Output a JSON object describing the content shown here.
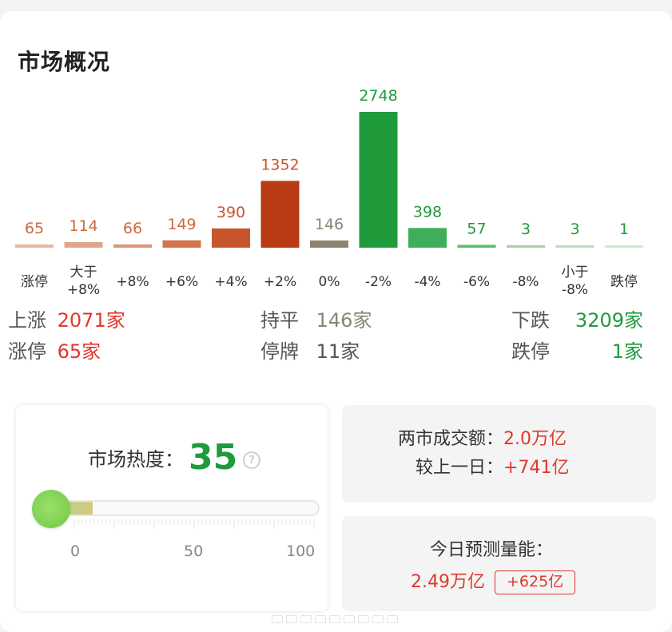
{
  "title": "市场概况",
  "chart_data": {
    "type": "bar",
    "categories": [
      "涨停",
      "大于\n+8%",
      "+8%",
      "+6%",
      "+4%",
      "+2%",
      "0%",
      "-2%",
      "-4%",
      "-6%",
      "-8%",
      "小于\n-8%",
      "跌停"
    ],
    "values": [
      65,
      114,
      66,
      149,
      390,
      1352,
      146,
      2748,
      398,
      57,
      3,
      3,
      1
    ],
    "colors": [
      "#e8b8a4",
      "#e0a58e",
      "#dd9677",
      "#d4744b",
      "#c8552e",
      "#b83b14",
      "#8d8470",
      "#1f9b3c",
      "#3fae5a",
      "#5bbd70",
      "#9ed4a7",
      "#b9e0c0",
      "#cdeacf"
    ],
    "label_colors": [
      "#d06a3f",
      "#d06a3f",
      "#d06a3f",
      "#d06a3f",
      "#c8552e",
      "#c8552e",
      "#8d8470",
      "#1f9b3c",
      "#1f9b3c",
      "#1f9b3c",
      "#1f9b3c",
      "#1f9b3c",
      "#1f9b3c"
    ],
    "ylim": [
      0,
      2748
    ]
  },
  "stats": {
    "up_label": "上涨",
    "up_value": "2071家",
    "flat_label": "持平",
    "flat_value": "146家",
    "down_label": "下跌",
    "down_value": "3209家",
    "limit_up_label": "涨停",
    "limit_up_value": "65家",
    "suspended_label": "停牌",
    "suspended_value": "11家",
    "limit_down_label": "跌停",
    "limit_down_value": "1家"
  },
  "heat": {
    "label": "市场热度：",
    "value": "35",
    "level": 35,
    "help_glyph": "?",
    "scale": [
      "0",
      "50",
      "100"
    ]
  },
  "turnover": {
    "label": "两市成交额：",
    "value": "2.0万亿",
    "compare_label": "较上一日：",
    "compare_value": "+741亿"
  },
  "forecast": {
    "label": "今日预测量能：",
    "value": "2.49万亿",
    "delta": "+625亿"
  },
  "colors": {
    "red": "#e0382c",
    "green": "#1e9b3c",
    "gray": "#8a8576"
  }
}
